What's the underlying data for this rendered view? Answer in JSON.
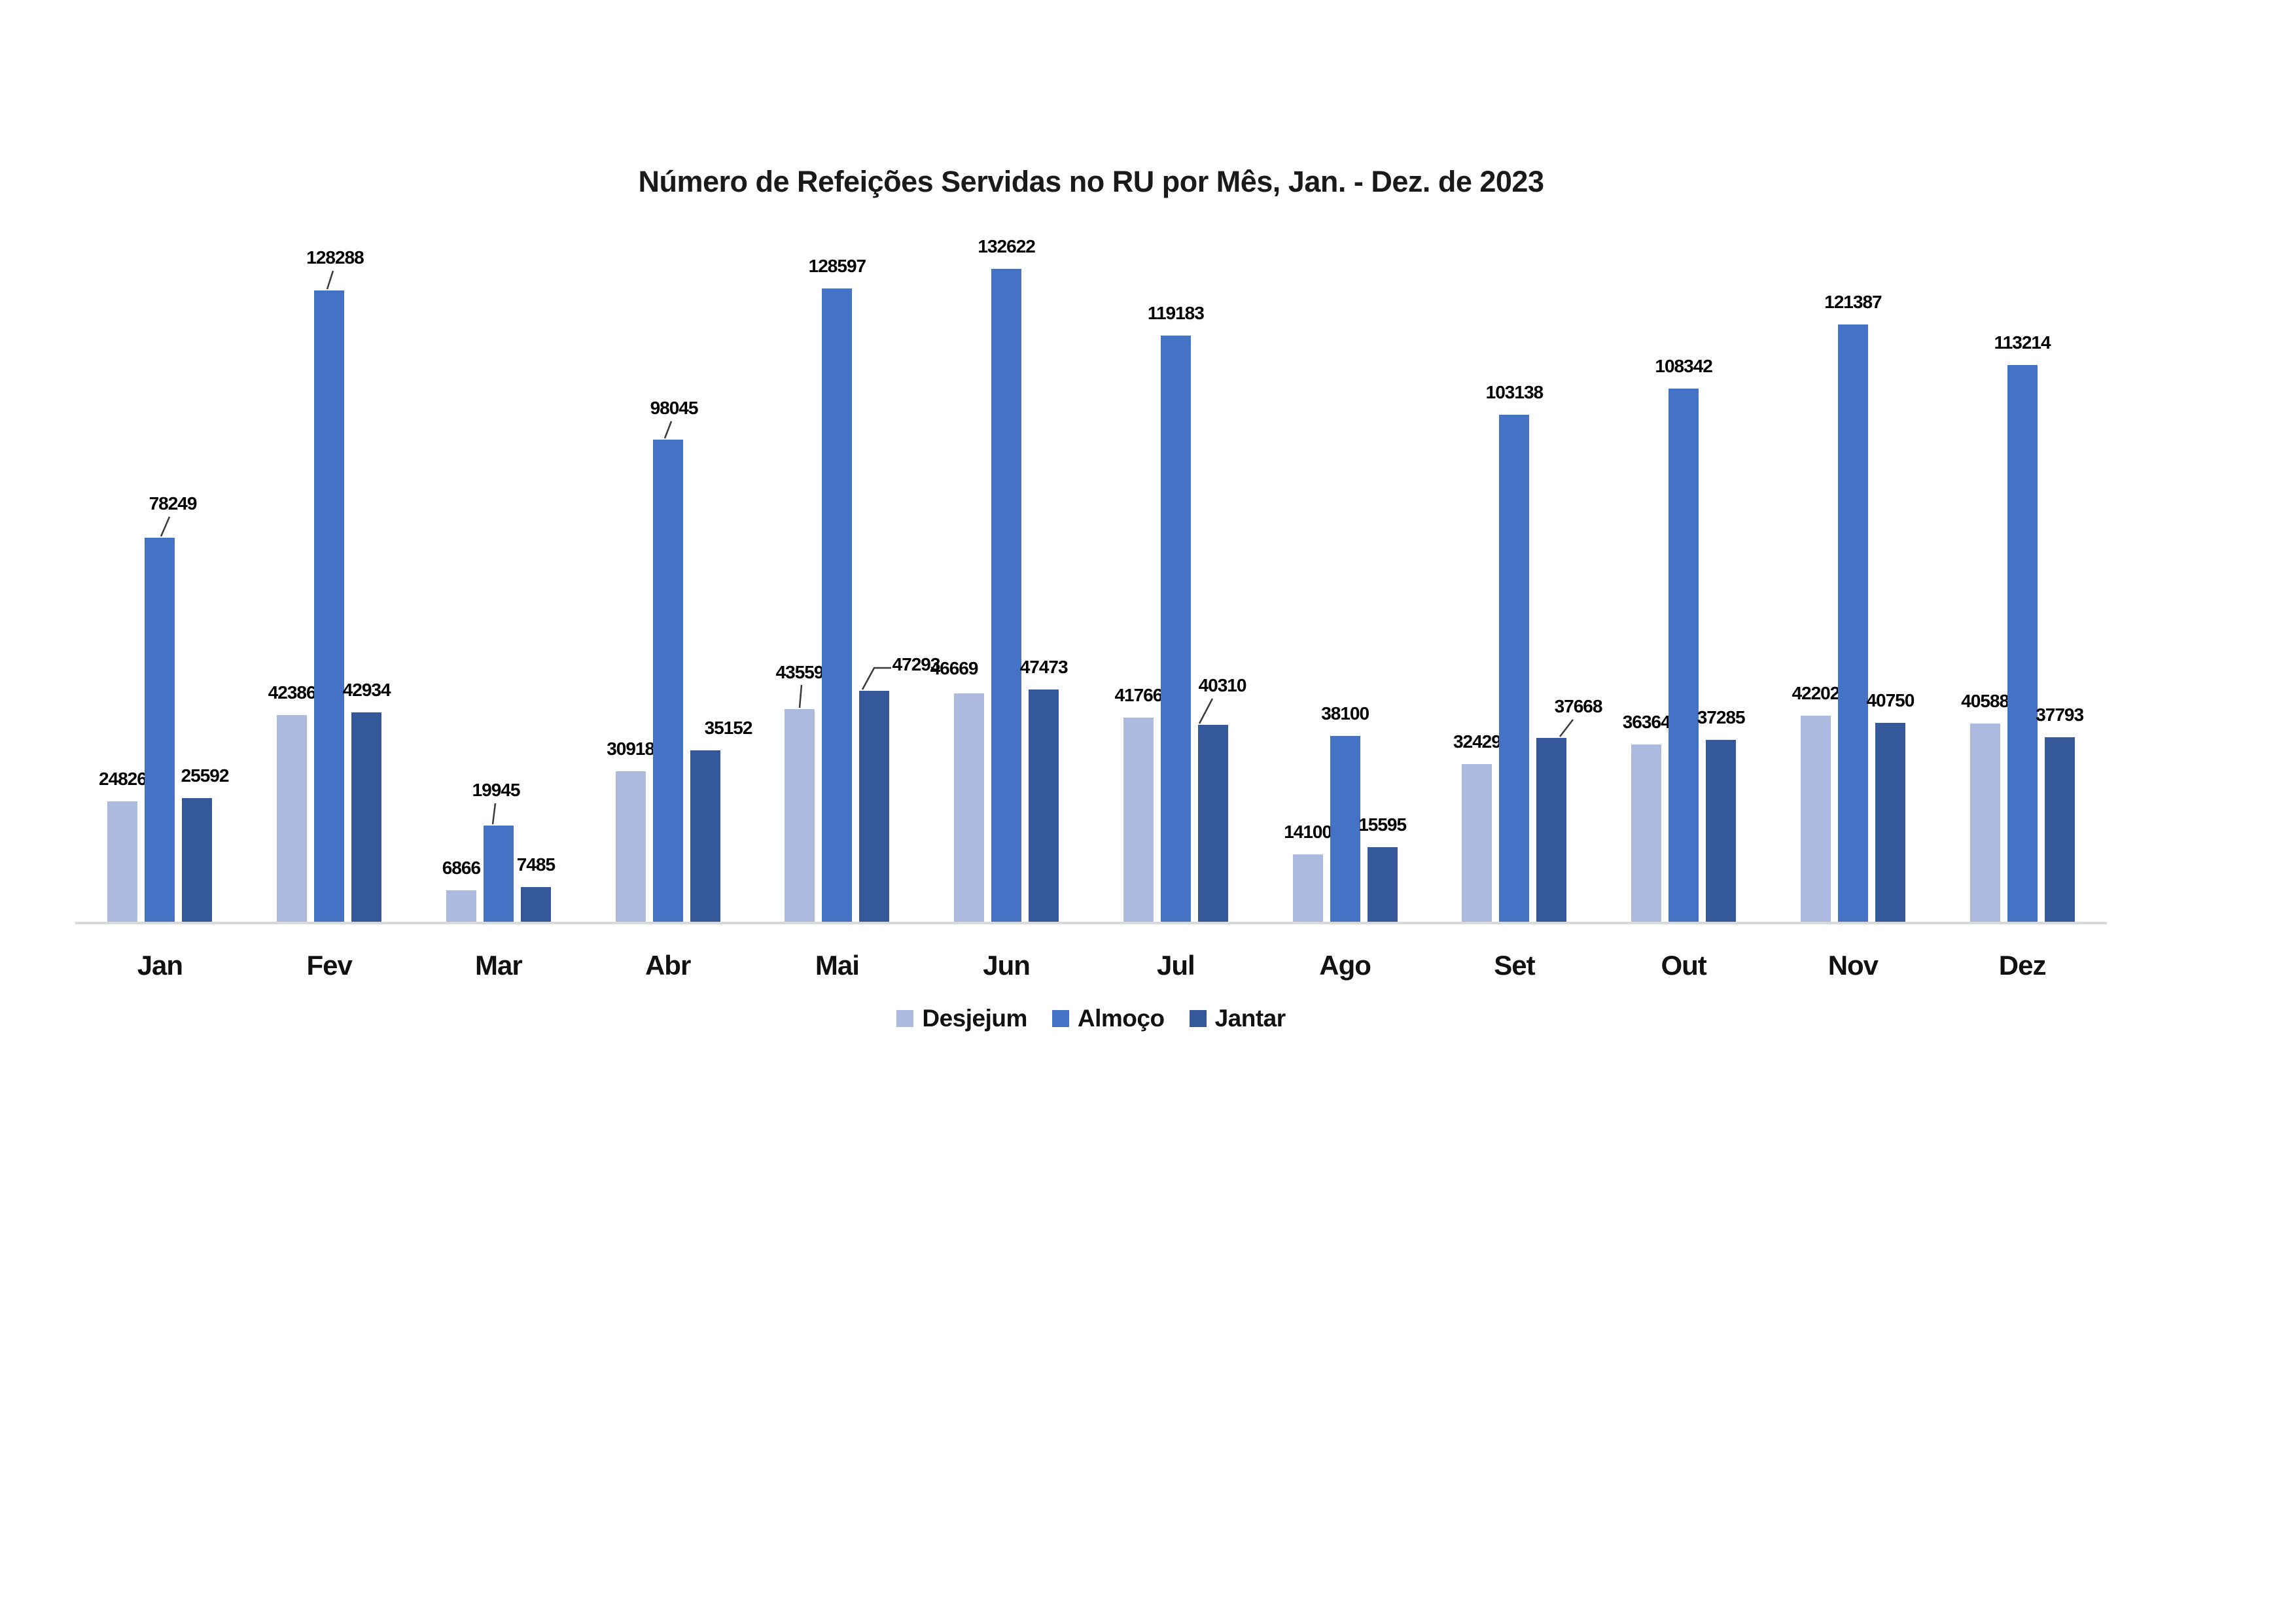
{
  "chart_data": {
    "type": "bar",
    "title": "Número de Refeições Servidas no RU por Mês, Jan. - Dez. de 2023",
    "categories": [
      "Jan",
      "Fev",
      "Mar",
      "Abr",
      "Mai",
      "Jun",
      "Jul",
      "Ago",
      "Set",
      "Out",
      "Nov",
      "Dez"
    ],
    "series": [
      {
        "name": "Desjejum",
        "color": "#ADBAE0",
        "values": [
          24826,
          42386,
          6866,
          30918,
          43559,
          46669,
          41766,
          14100,
          32429,
          36364,
          42202,
          40588
        ]
      },
      {
        "name": "Almoço",
        "color": "#4472C4",
        "values": [
          78249,
          128288,
          19945,
          98045,
          128597,
          132622,
          119183,
          38100,
          103138,
          108342,
          121387,
          113214
        ]
      },
      {
        "name": "Jantar",
        "color": "#35589B",
        "values": [
          25592,
          42934,
          7485,
          35152,
          47293,
          47473,
          40310,
          15595,
          37668,
          37285,
          40750,
          37793
        ]
      }
    ],
    "xlabel": "",
    "ylabel": "",
    "ylim": [
      0,
      132622
    ],
    "grid": false,
    "data_labels": true,
    "legend_position": "bottom",
    "axis_line_color": "#D9D9D9",
    "background": "#FFFFFF"
  }
}
